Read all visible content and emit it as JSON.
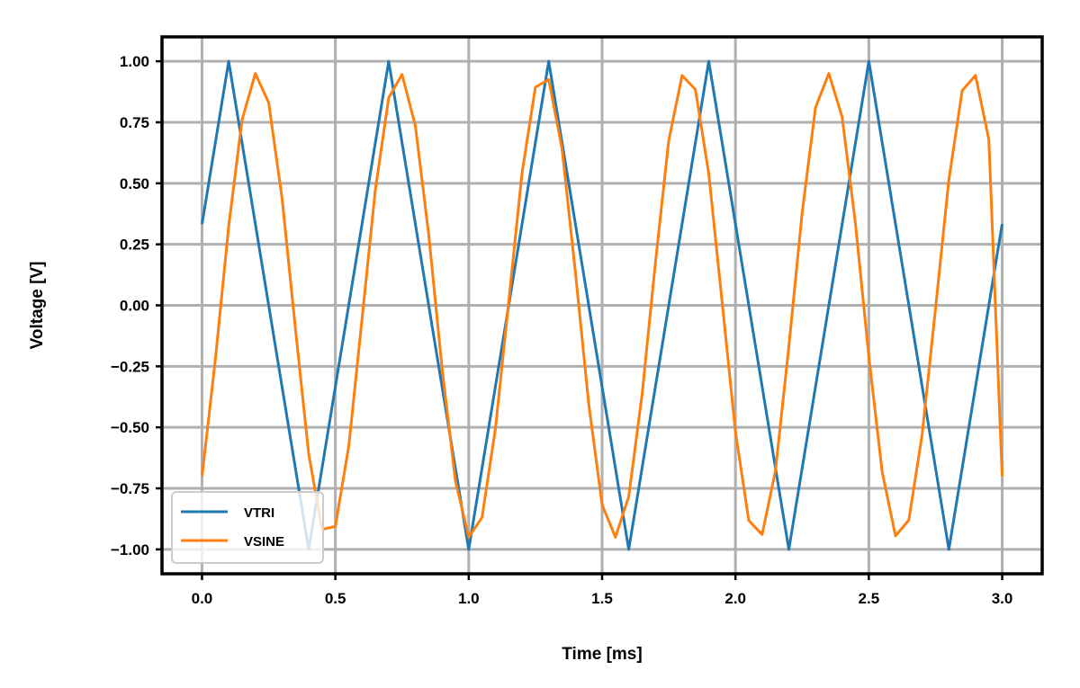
{
  "chart_data": {
    "type": "line",
    "title": "",
    "xlabel": "Time [ms]",
    "ylabel": "Voltage [V]",
    "xlim": [
      -0.15,
      3.15
    ],
    "ylim": [
      -1.1,
      1.1
    ],
    "xticks": [
      0.0,
      0.5,
      1.0,
      1.5,
      2.0,
      2.5,
      3.0
    ],
    "xtick_labels": [
      "0.0",
      "0.5",
      "1.0",
      "1.5",
      "2.0",
      "2.5",
      "3.0"
    ],
    "yticks": [
      1.0,
      0.75,
      0.5,
      0.25,
      0.0,
      -0.25,
      -0.5,
      -0.75,
      -1.0
    ],
    "ytick_labels": [
      "1.00",
      "0.75",
      "0.50",
      "0.25",
      "0.00",
      "−0.25",
      "−0.50",
      "−0.75",
      "−1.00"
    ],
    "grid": true,
    "legend": {
      "placement": "lower-left"
    },
    "series": [
      {
        "name": "VTRI",
        "color": "#1f77b4",
        "x": [
          0.0,
          0.1,
          0.4,
          0.7,
          1.0,
          1.3,
          1.6,
          1.9,
          2.2,
          2.5,
          2.8,
          3.0
        ],
        "y": [
          0.333,
          1.0,
          -1.0,
          1.0,
          -1.0,
          1.0,
          -1.0,
          1.0,
          -1.0,
          1.0,
          -1.0,
          0.333
        ]
      },
      {
        "name": "VSINE",
        "color": "#ff7f0e",
        "x": [
          0.0,
          0.05,
          0.1,
          0.15,
          0.2,
          0.25,
          0.3,
          0.35,
          0.4,
          0.45,
          0.5,
          0.55,
          0.6,
          0.65,
          0.7,
          0.75,
          0.8,
          0.85,
          0.9,
          0.95,
          1.0,
          1.05,
          1.1,
          1.15,
          1.2,
          1.25,
          1.3,
          1.35,
          1.4,
          1.45,
          1.5,
          1.55,
          1.6,
          1.65,
          1.7,
          1.75,
          1.8,
          1.85,
          1.9,
          1.95,
          2.0,
          2.05,
          2.1,
          2.15,
          2.2,
          2.25,
          2.3,
          2.35,
          2.4,
          2.45,
          2.5,
          2.55,
          2.6,
          2.65,
          2.7,
          2.75,
          2.8,
          2.85,
          2.9,
          2.95,
          3.0
        ],
        "y": [
          -0.7,
          -0.222,
          0.323,
          0.759,
          0.95,
          0.831,
          0.439,
          -0.094,
          -0.609,
          -0.918,
          -0.906,
          -0.578,
          -0.055,
          0.475,
          0.85,
          0.946,
          0.736,
          0.289,
          -0.259,
          -0.719,
          -0.95,
          -0.869,
          -0.505,
          0.017,
          0.544,
          0.894,
          0.925,
          0.642,
          0.133,
          -0.405,
          -0.817,
          -0.95,
          -0.784,
          -0.363,
          0.177,
          0.677,
          0.942,
          0.884,
          0.54,
          0.012,
          -0.519,
          -0.882,
          -0.939,
          -0.678,
          -0.169,
          0.38,
          0.81,
          0.95,
          0.772,
          0.335,
          -0.21,
          -0.683,
          -0.945,
          -0.88,
          -0.53,
          -0.012,
          0.514,
          0.88,
          0.942,
          0.68,
          -0.7
        ]
      }
    ]
  }
}
